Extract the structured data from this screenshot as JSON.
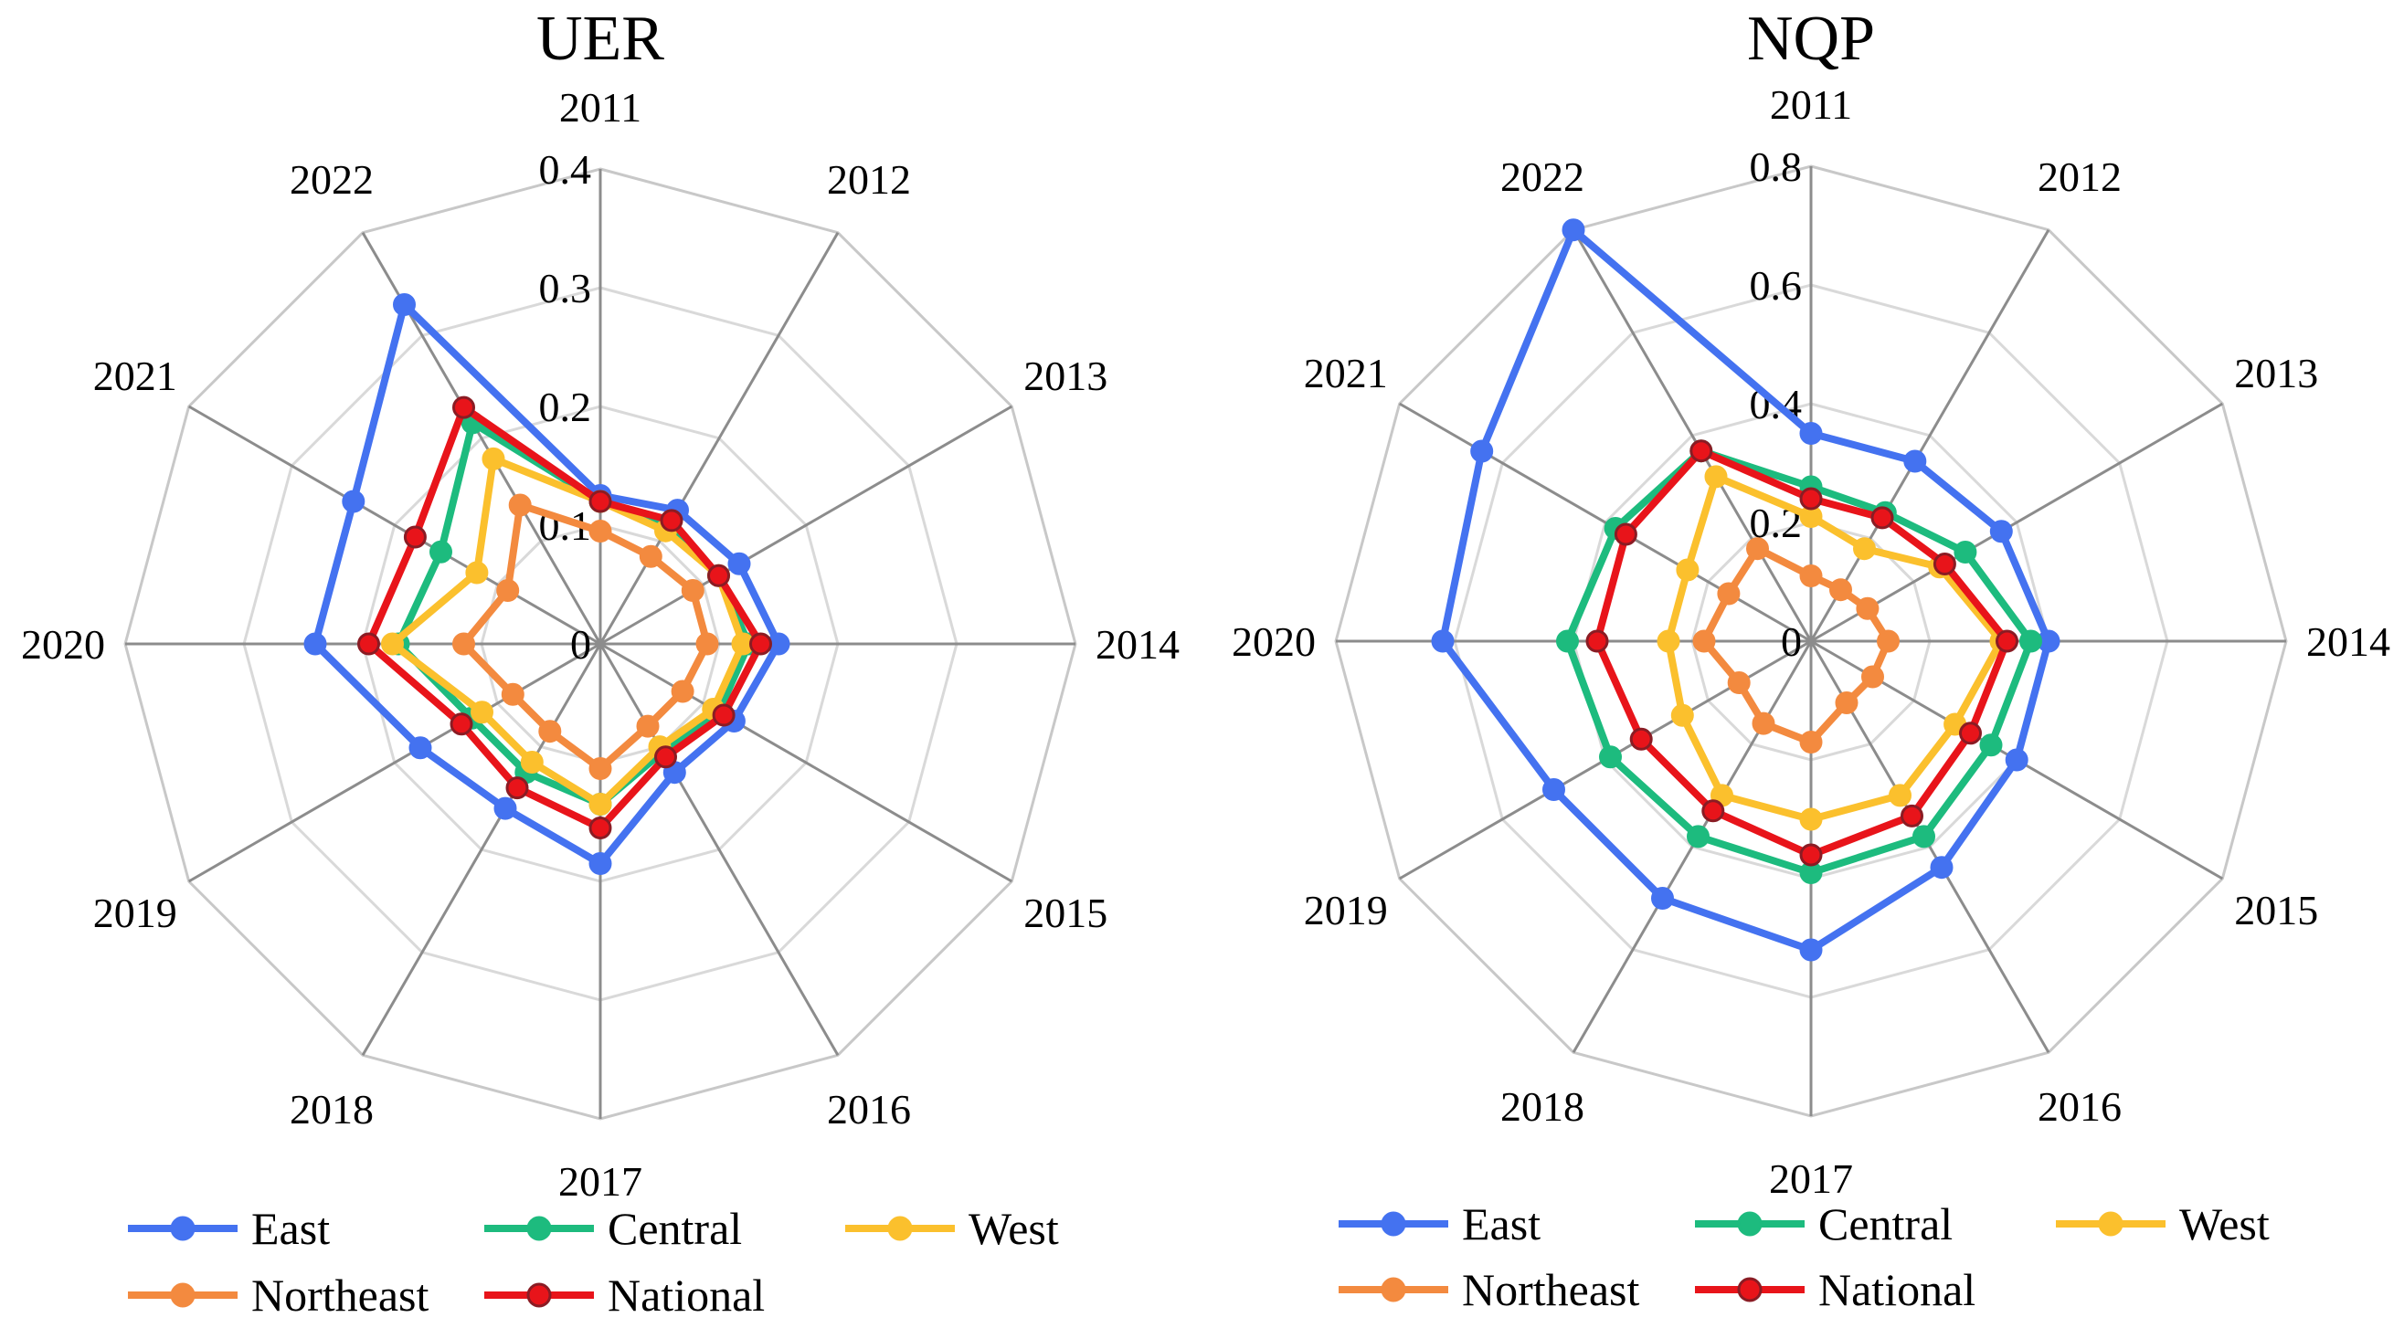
{
  "chart_data": [
    {
      "type": "radar",
      "title": "UER",
      "categories": [
        "2011",
        "2012",
        "2013",
        "2014",
        "2015",
        "2016",
        "2017",
        "2018",
        "2019",
        "2020",
        "2021",
        "2022"
      ],
      "rlim": [
        0,
        0.4
      ],
      "ticks": [
        0,
        0.1,
        0.2,
        0.3,
        0.4
      ],
      "tick_labels": [
        "0",
        "0.1",
        "0.2",
        "0.3",
        "0.4"
      ],
      "series": [
        {
          "name": "East",
          "values": [
            0.125,
            0.13,
            0.135,
            0.15,
            0.13,
            0.125,
            0.185,
            0.16,
            0.175,
            0.24,
            0.24,
            0.33
          ]
        },
        {
          "name": "Central",
          "values": [
            0.12,
            0.115,
            0.115,
            0.125,
            0.115,
            0.105,
            0.135,
            0.125,
            0.125,
            0.17,
            0.155,
            0.215
          ]
        },
        {
          "name": "West",
          "values": [
            0.12,
            0.11,
            0.115,
            0.12,
            0.11,
            0.1,
            0.135,
            0.115,
            0.115,
            0.175,
            0.12,
            0.18
          ]
        },
        {
          "name": "Northeast",
          "values": [
            0.095,
            0.085,
            0.09,
            0.09,
            0.08,
            0.08,
            0.105,
            0.085,
            0.085,
            0.115,
            0.09,
            0.135
          ]
        },
        {
          "name": "National",
          "values": [
            0.12,
            0.12,
            0.115,
            0.135,
            0.12,
            0.11,
            0.155,
            0.14,
            0.135,
            0.195,
            0.18,
            0.23
          ]
        }
      ]
    },
    {
      "type": "radar",
      "title": "NQP",
      "categories": [
        "2011",
        "2012",
        "2013",
        "2014",
        "2015",
        "2016",
        "2017",
        "2018",
        "2019",
        "2020",
        "2021",
        "2022"
      ],
      "rlim": [
        0,
        0.8
      ],
      "ticks": [
        0,
        0.2,
        0.4,
        0.6,
        0.8
      ],
      "tick_labels": [
        "0",
        "0.2",
        "0.4",
        "0.6",
        "0.8"
      ],
      "series": [
        {
          "name": "East",
          "values": [
            0.35,
            0.35,
            0.37,
            0.4,
            0.4,
            0.44,
            0.52,
            0.5,
            0.5,
            0.62,
            0.64,
            0.8
          ]
        },
        {
          "name": "Central",
          "values": [
            0.26,
            0.25,
            0.3,
            0.37,
            0.35,
            0.38,
            0.39,
            0.38,
            0.39,
            0.41,
            0.38,
            0.37
          ]
        },
        {
          "name": "West",
          "values": [
            0.21,
            0.18,
            0.25,
            0.32,
            0.28,
            0.3,
            0.3,
            0.3,
            0.25,
            0.24,
            0.24,
            0.32
          ]
        },
        {
          "name": "Northeast",
          "values": [
            0.11,
            0.1,
            0.11,
            0.13,
            0.12,
            0.12,
            0.17,
            0.16,
            0.14,
            0.18,
            0.16,
            0.18
          ]
        },
        {
          "name": "National",
          "values": [
            0.24,
            0.24,
            0.26,
            0.33,
            0.31,
            0.34,
            0.36,
            0.33,
            0.33,
            0.36,
            0.36,
            0.37
          ]
        }
      ]
    }
  ],
  "legend": {
    "items": [
      {
        "name": "East",
        "color": "#4472F0"
      },
      {
        "name": "Central",
        "color": "#1DBB7E"
      },
      {
        "name": "West",
        "color": "#FBC02D"
      },
      {
        "name": "Northeast",
        "color": "#F38A3F"
      },
      {
        "name": "National",
        "color": "#E8141A"
      }
    ]
  }
}
